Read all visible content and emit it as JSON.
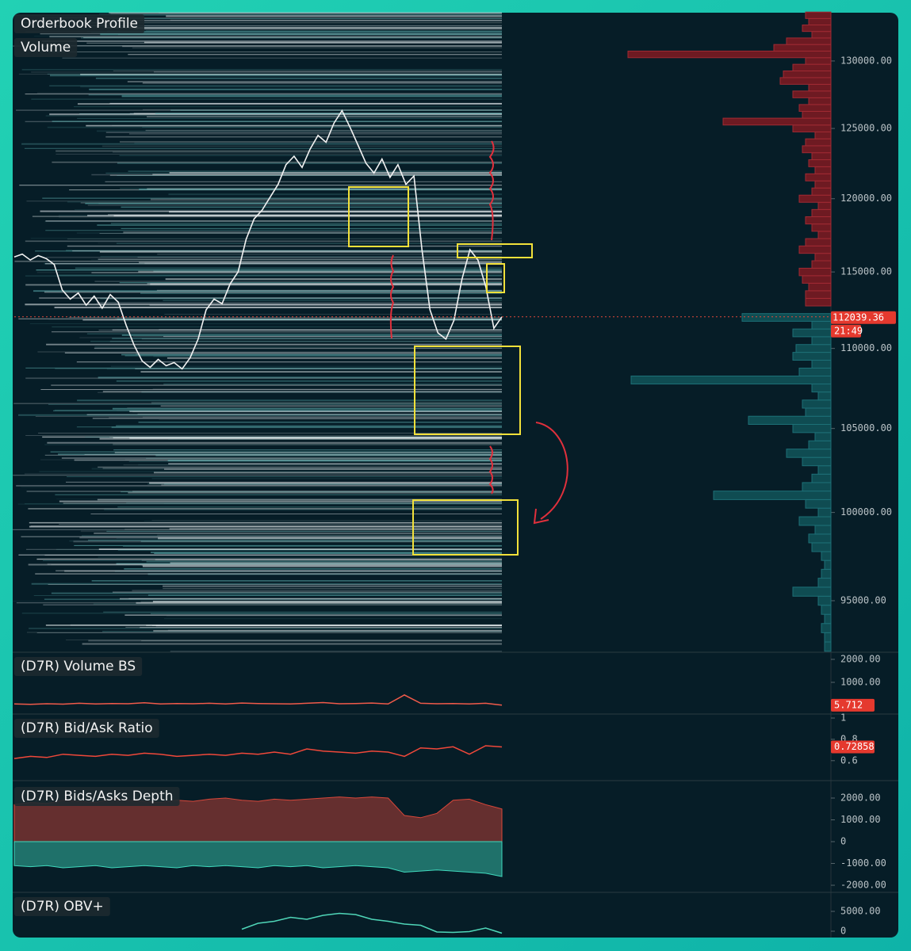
{
  "chart_data": [
    {
      "type": "orderbook",
      "title": "Orderbook Profile",
      "subtitle": "Volume",
      "log_scale": true,
      "ylim": [
        92240,
        133700
      ],
      "yticks": [
        {
          "value": 130000,
          "label": "130000.00"
        },
        {
          "value": 125000,
          "label": "125000.00"
        },
        {
          "value": 120000,
          "label": "120000.00"
        },
        {
          "value": 115000,
          "label": "115000.00"
        },
        {
          "value": 110000,
          "label": "110000.00"
        },
        {
          "value": 105000,
          "label": "105000.00"
        },
        {
          "value": 100000,
          "label": "100000.00"
        },
        {
          "value": 95000,
          "label": "95000.00"
        }
      ],
      "color": "#f2f2f2",
      "values": [
        116000,
        116200,
        115800,
        116100,
        115900,
        115500,
        113800,
        113200,
        113600,
        112800,
        113400,
        112600,
        113500,
        113000,
        111500,
        110200,
        109200,
        108800,
        109300,
        108900,
        109100,
        108700,
        109400,
        110600,
        112500,
        113200,
        112900,
        114200,
        115000,
        117200,
        118600,
        119200,
        120100,
        121000,
        122400,
        123000,
        122200,
        123500,
        124500,
        124000,
        125400,
        126300,
        125100,
        123800,
        122500,
        121800,
        122800,
        121500,
        122400,
        121000,
        121600,
        116500,
        112500,
        111000,
        110600,
        111800,
        114500,
        116500,
        115800,
        114000,
        111300,
        112039.36
      ],
      "countdown": "21:49",
      "profile_xlim": [
        0,
        100
      ],
      "asks": {
        "color": "#6e1a22",
        "levels": [
          113000,
          113500,
          114000,
          114500,
          115000,
          115500,
          116000,
          116500,
          117000,
          117500,
          118000,
          118500,
          119000,
          119500,
          120000,
          120500,
          121000,
          121500,
          122000,
          122500,
          123000,
          123500,
          124000,
          124500,
          125000,
          125500,
          126000,
          126500,
          127000,
          127500,
          128000,
          128500,
          129000,
          129500,
          130000,
          130500,
          131000,
          131500,
          132000,
          132500,
          133000,
          133500
        ],
        "values": [
          8,
          8,
          7,
          9,
          10,
          6,
          5,
          10,
          8,
          4,
          6,
          8,
          6,
          4,
          10,
          6,
          5,
          8,
          5,
          7,
          6,
          9,
          8,
          5,
          12,
          34,
          9,
          10,
          7,
          12,
          7,
          16,
          15,
          12,
          8,
          64,
          18,
          14,
          6,
          9,
          7,
          8
        ]
      },
      "bids": {
        "color": "#0f4c52",
        "levels": [
          92500,
          93000,
          93500,
          94000,
          94500,
          95000,
          95500,
          96000,
          96500,
          97000,
          97500,
          98000,
          98500,
          99000,
          99500,
          100000,
          100500,
          101000,
          101500,
          102000,
          102500,
          103000,
          103500,
          104000,
          104500,
          105000,
          105500,
          106000,
          106500,
          107000,
          107500,
          108000,
          108500,
          109000,
          109500,
          110000,
          110500,
          111000,
          111500,
          112000
        ],
        "values": [
          2,
          2,
          3,
          2,
          3,
          4,
          12,
          4,
          3,
          2,
          3,
          6,
          7,
          5,
          10,
          4,
          8,
          37,
          9,
          6,
          4,
          9,
          14,
          7,
          5,
          12,
          26,
          8,
          9,
          4,
          6,
          63,
          10,
          6,
          12,
          11,
          6,
          12,
          6,
          28
        ]
      }
    },
    {
      "type": "line",
      "title": "(D7R) Volume BS",
      "ylim": [
        -345,
        2276
      ],
      "yticks": [
        {
          "value": 2000,
          "label": "2000.00"
        },
        {
          "value": 1000,
          "label": "1000.00"
        }
      ],
      "color": "#f05a4a",
      "values": [
        60,
        40,
        70,
        50,
        90,
        60,
        80,
        70,
        110,
        60,
        80,
        70,
        90,
        60,
        100,
        80,
        70,
        60,
        90,
        120,
        70,
        80,
        100,
        60,
        450,
        90,
        70,
        80,
        60,
        90,
        5.712
      ]
    },
    {
      "type": "line",
      "title": "(D7R) Bid/Ask Ratio",
      "ylim": [
        0.42,
        1.03
      ],
      "yticks": [
        1,
        0.8,
        0.6
      ],
      "color": "#f0483a",
      "values": [
        0.62,
        0.64,
        0.63,
        0.66,
        0.65,
        0.64,
        0.66,
        0.65,
        0.67,
        0.66,
        0.64,
        0.65,
        0.66,
        0.65,
        0.67,
        0.66,
        0.68,
        0.66,
        0.71,
        0.69,
        0.68,
        0.67,
        0.69,
        0.68,
        0.64,
        0.72,
        0.71,
        0.73,
        0.66,
        0.74,
        0.72858
      ]
    },
    {
      "type": "area",
      "title": "(D7R) Bids/Asks Depth",
      "ylim": [
        -2290,
        2764
      ],
      "yticks": [
        {
          "value": 2000,
          "label": "2000.00"
        },
        {
          "value": 1000,
          "label": "1000.00"
        },
        0,
        {
          "value": -1000,
          "label": "-1000.00"
        },
        {
          "value": -2000,
          "label": "-2000.00"
        }
      ],
      "series": [
        {
          "color": "#d9473a",
          "values": [
            1700,
            1800,
            1750,
            1900,
            1850,
            1800,
            1950,
            1900,
            1850,
            1800,
            1900,
            1850,
            1950,
            2000,
            1900,
            1850,
            1950,
            1900,
            1950,
            2000,
            2050,
            2000,
            2050,
            2000,
            1200,
            1100,
            1300,
            1900,
            1950,
            1700,
            1500
          ]
        },
        {
          "color": "#3fd9bd",
          "values": [
            -1100,
            -1150,
            -1100,
            -1200,
            -1150,
            -1100,
            -1200,
            -1150,
            -1100,
            -1150,
            -1200,
            -1100,
            -1150,
            -1100,
            -1150,
            -1200,
            -1100,
            -1150,
            -1100,
            -1200,
            -1150,
            -1100,
            -1150,
            -1200,
            -1400,
            -1350,
            -1300,
            -1350,
            -1400,
            -1450,
            -1600
          ]
        }
      ]
    },
    {
      "type": "line",
      "title": "(D7R) OBV+",
      "ylim": [
        -1600,
        9600
      ],
      "yticks": [
        {
          "value": 5000,
          "label": "5000.00"
        },
        0
      ],
      "color": "#4fd6b8",
      "values": [
        null,
        null,
        null,
        null,
        null,
        null,
        null,
        null,
        null,
        null,
        null,
        null,
        null,
        null,
        500,
        2000,
        2500,
        3500,
        3000,
        4000,
        4500,
        4200,
        3000,
        2500,
        1800,
        1500,
        -200,
        -300,
        -100,
        800,
        -500
      ]
    }
  ]
}
